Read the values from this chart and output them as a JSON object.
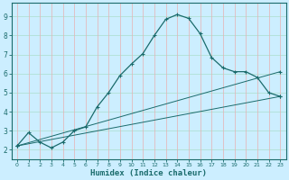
{
  "xlabel": "Humidex (Indice chaleur)",
  "bg_color": "#cceeff",
  "grid_color_h": "#aaddcc",
  "grid_color_v": "#e8b0b0",
  "line_color": "#1a6b6b",
  "xlim": [
    -0.5,
    23.5
  ],
  "ylim": [
    1.5,
    9.7
  ],
  "xticks": [
    0,
    1,
    2,
    3,
    4,
    5,
    6,
    7,
    8,
    9,
    10,
    11,
    12,
    13,
    14,
    15,
    16,
    17,
    18,
    19,
    20,
    21,
    22,
    23
  ],
  "yticks": [
    2,
    3,
    4,
    5,
    6,
    7,
    8,
    9
  ],
  "curve1_x": [
    0,
    1,
    2,
    3,
    4,
    5,
    6,
    7,
    8,
    9,
    10,
    11,
    12,
    13,
    14,
    15,
    16,
    17,
    18,
    19,
    20,
    21,
    22,
    23
  ],
  "curve1_y": [
    2.2,
    2.9,
    2.4,
    2.1,
    2.4,
    3.0,
    3.2,
    4.25,
    5.0,
    5.9,
    6.5,
    7.05,
    8.0,
    8.85,
    9.1,
    8.9,
    8.1,
    6.85,
    6.3,
    6.1,
    6.1,
    5.8,
    5.0,
    4.8
  ],
  "curve2_x": [
    0,
    23
  ],
  "curve2_y": [
    2.2,
    4.8
  ],
  "curve3_x": [
    0,
    23
  ],
  "curve3_y": [
    2.2,
    6.1
  ]
}
